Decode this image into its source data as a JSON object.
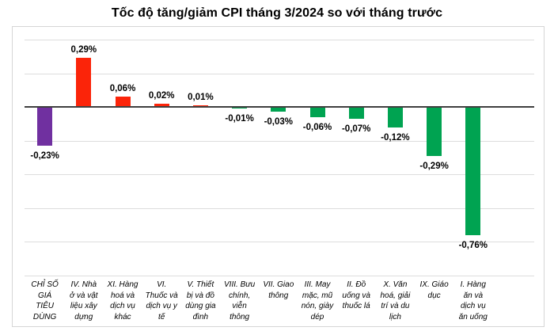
{
  "chart_data": {
    "type": "bar",
    "title": "Tốc độ tăng/giảm CPI tháng 3/2024 so với tháng trước",
    "xlabel": "",
    "ylabel": "",
    "unit": "%",
    "ylim": [
      -1.0,
      0.4
    ],
    "gridline_step": 0.2,
    "grid": true,
    "legend_position": "none",
    "categories": [
      "CHỈ SỐ GIÁ TIÊU DÙNG",
      "IV. Nhà ở và vật liệu xây dựng",
      "XI. Hàng hoá và dịch vụ khác",
      "VI. Thuốc và dịch vụ y tế",
      "V. Thiết bị và đồ dùng gia đình",
      "VIII. Bưu chính, viễn thông",
      "VII. Giao thông",
      "III. May mặc, mũ nón, giày dép",
      "II. Đồ uống và thuốc lá",
      "X. Văn hoá, giải trí và du lịch",
      "IX. Giáo dục",
      "I. Hàng ăn và dịch vụ ăn uống"
    ],
    "categories_wrapped": [
      "CHỈ SỐ\nGIÁ\nTIÊU\nDÙNG",
      "IV. Nhà\nở và vật\nliệu xây\ndựng",
      "XI. Hàng\nhoá và\ndịch vụ\nkhác",
      "VI.\nThuốc và\ndịch vụ y\ntế",
      "V. Thiết\nbị và đồ\ndùng gia\nđình",
      "VIII. Bưu\nchính,\nviễn\nthông",
      "VII. Giao\nthông",
      "III. May\nmặc, mũ\nnón, giày\ndép",
      "II. Đồ\nuống và\nthuốc lá",
      "X. Văn\nhoá, giải\ntrí và du\nlịch",
      "IX. Giáo\ndục",
      "I. Hàng\năn và\ndịch vụ\năn uống"
    ],
    "values": [
      -0.23,
      0.29,
      0.06,
      0.02,
      0.01,
      -0.01,
      -0.03,
      -0.06,
      -0.07,
      -0.12,
      -0.29,
      -0.76
    ],
    "value_labels": [
      "-0,23%",
      "0,29%",
      "0,06%",
      "0,02%",
      "0,01%",
      "-0,01%",
      "-0,03%",
      "-0,06%",
      "-0,07%",
      "-0,12%",
      "-0,29%",
      "-0,76%"
    ],
    "bar_colors": [
      "#7030A0",
      "#FB2409",
      "#FB2409",
      "#FB2409",
      "#FB2409",
      "#00A351",
      "#00A351",
      "#00A351",
      "#00A351",
      "#00A351",
      "#00A351",
      "#00A351"
    ]
  },
  "colors": {
    "overall_index_bar": "#7030A0",
    "increase_bar": "#FB2409",
    "decrease_bar": "#00A351",
    "gridline": "#DDDDDD",
    "axis_line": "#3F3F3F",
    "card_border": "#D6D6D6",
    "text": "#000000",
    "background": "#FFFFFF"
  }
}
